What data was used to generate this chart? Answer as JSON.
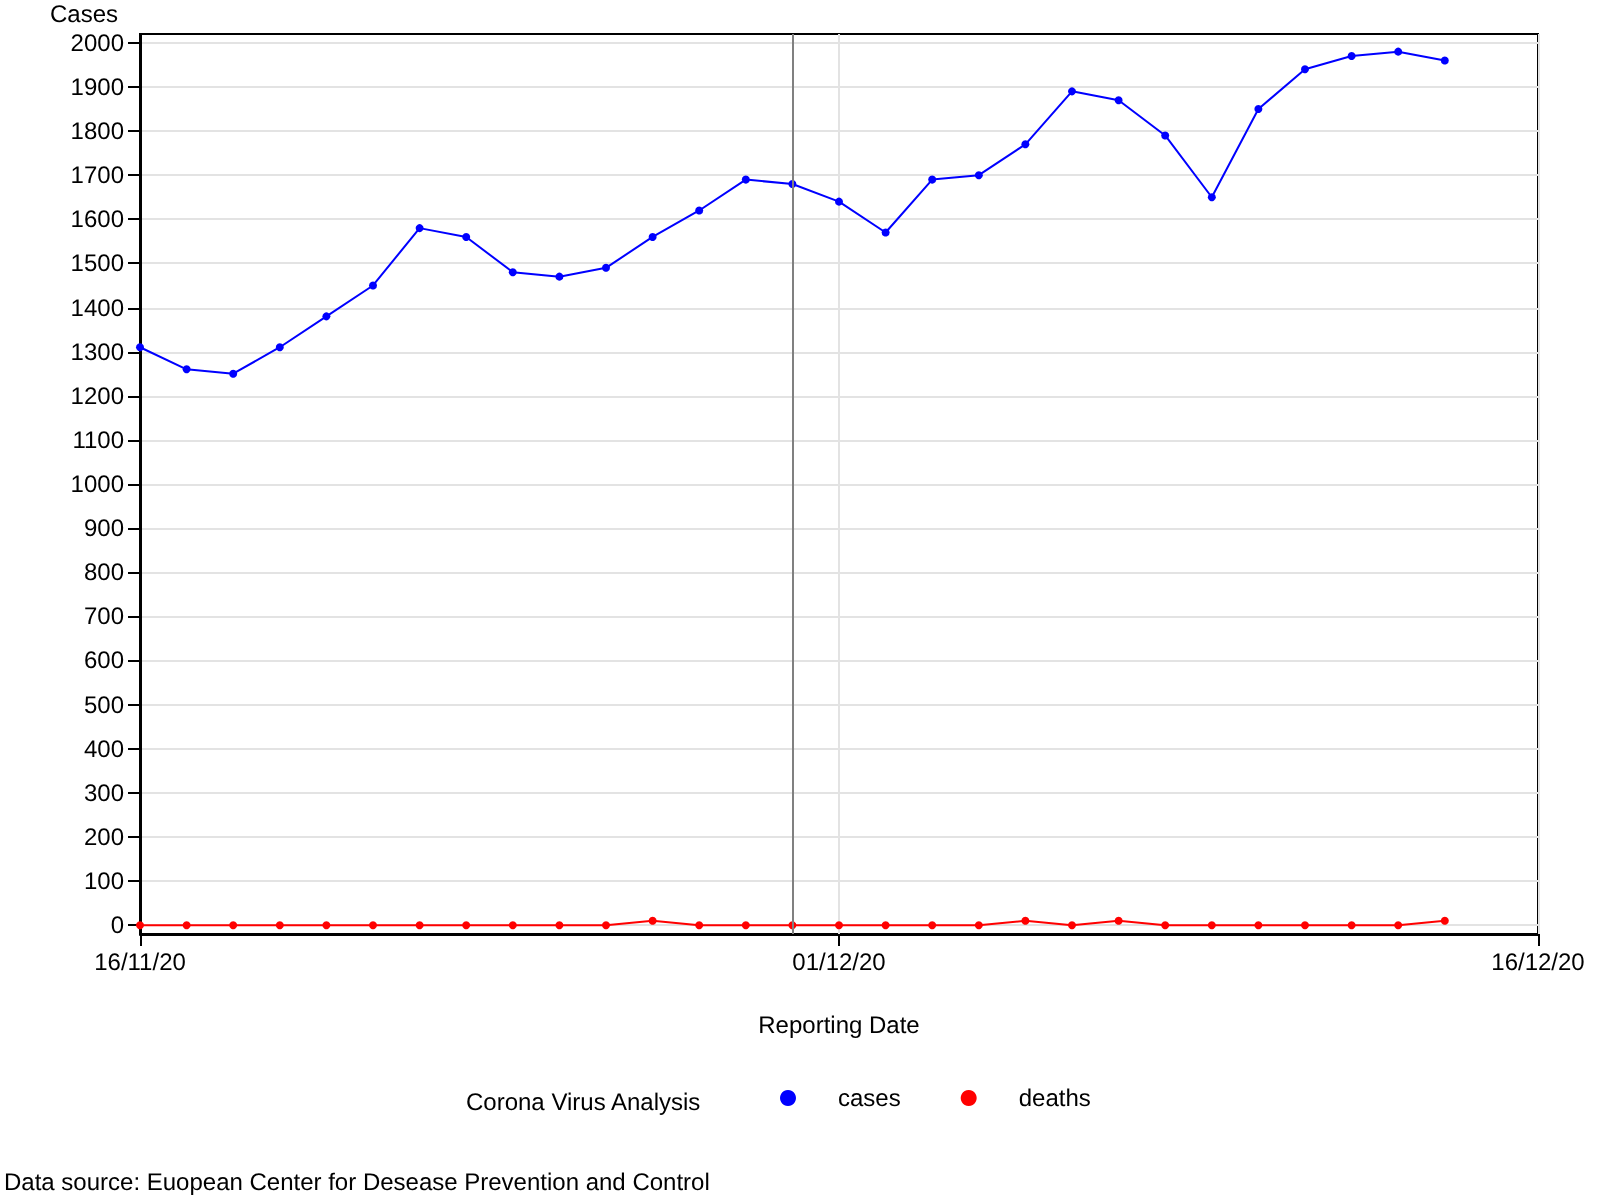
{
  "chart_data": {
    "type": "line",
    "ylabel": "Cases",
    "xlabel": "Reporting Date",
    "legend_title": "Corona Virus Analysis",
    "legend": "bottom",
    "grid": true,
    "marker": "circle",
    "line_style": "solid",
    "x": [
      "2020-11-16",
      "2020-11-17",
      "2020-11-18",
      "2020-11-19",
      "2020-11-20",
      "2020-11-21",
      "2020-11-22",
      "2020-11-23",
      "2020-11-24",
      "2020-11-25",
      "2020-11-26",
      "2020-11-27",
      "2020-11-28",
      "2020-11-29",
      "2020-11-30",
      "2020-12-01",
      "2020-12-02",
      "2020-12-03",
      "2020-12-04",
      "2020-12-05",
      "2020-12-06",
      "2020-12-07",
      "2020-12-08",
      "2020-12-09",
      "2020-12-10",
      "2020-12-11",
      "2020-12-12",
      "2020-12-13",
      "2020-12-14"
    ],
    "series": [
      {
        "name": "cases",
        "color": "#0000ff",
        "values": [
          1310,
          1260,
          1250,
          1310,
          1380,
          1450,
          1580,
          1560,
          1480,
          1470,
          1490,
          1560,
          1620,
          1690,
          1680,
          1640,
          1570,
          1690,
          1700,
          1770,
          1890,
          1870,
          1790,
          1650,
          1850,
          1940,
          1970,
          1980,
          1960
        ]
      },
      {
        "name": "deaths",
        "color": "#ff0000",
        "values": [
          0,
          0,
          0,
          0,
          0,
          0,
          0,
          0,
          0,
          0,
          0,
          10,
          0,
          0,
          0,
          0,
          0,
          0,
          0,
          10,
          0,
          10,
          0,
          0,
          0,
          0,
          0,
          0,
          10
        ]
      }
    ],
    "xlim": [
      "2020-11-16",
      "2020-12-16"
    ],
    "xticks": [
      {
        "value": "2020-11-16",
        "label": "16/11/20"
      },
      {
        "value": "2020-12-01",
        "label": "01/12/20"
      },
      {
        "value": "2020-12-16",
        "label": "16/12/20"
      }
    ],
    "ylim": [
      -20,
      2020
    ],
    "yticks": [
      0,
      100,
      200,
      300,
      400,
      500,
      600,
      700,
      800,
      900,
      1000,
      1100,
      1200,
      1300,
      1400,
      1500,
      1600,
      1700,
      1800,
      1900,
      2000
    ],
    "ref_lines": [
      {
        "axis": "x",
        "value": "2020-11-30",
        "color": "#808080"
      }
    ],
    "annotations": [
      "Data source: Euopean Center for Desease Prevention and Control"
    ]
  }
}
